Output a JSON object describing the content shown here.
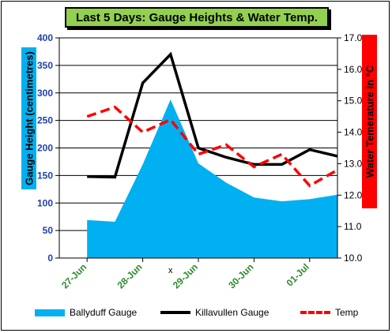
{
  "chart_data": {
    "type": "line",
    "title": "Last 5 Days: Gauge Heights & Water Temp.",
    "ylabel": "Gauge Height (centimetres)",
    "y2label": "Water Temerature in °C",
    "ylim": [
      0,
      400
    ],
    "y2lim": [
      10.0,
      17.0
    ],
    "yticks": [
      "0",
      "50",
      "100",
      "150",
      "200",
      "250",
      "300",
      "350",
      "400"
    ],
    "y2ticks": [
      "10.0",
      "11.0",
      "12.0",
      "13.0",
      "14.0",
      "15.0",
      "16.0",
      "17.0"
    ],
    "xticks": [
      "27-Jun",
      "28-Jun",
      "29-Jun",
      "30-Jun",
      "01-Jul"
    ],
    "x_marker_label": "x",
    "grid": true,
    "legend_position": "bottom",
    "series": [
      {
        "name": "Ballyduff Gauge",
        "type": "area",
        "color": "#00b0f0",
        "x": [
          0.0,
          0.5,
          1.0,
          1.5,
          2.0,
          2.5,
          3.0,
          3.5,
          4.0,
          4.5
        ],
        "values": [
          69,
          66,
          170,
          288,
          172,
          137,
          110,
          103,
          107,
          115
        ]
      },
      {
        "name": "Killavullen Gauge",
        "type": "line",
        "color": "#000000",
        "x": [
          0.0,
          0.5,
          1.0,
          1.5,
          2.0,
          2.5,
          3.0,
          3.5,
          4.0,
          4.5
        ],
        "values": [
          148,
          147,
          318,
          370,
          200,
          183,
          170,
          170,
          197,
          185
        ]
      },
      {
        "name": "Temp",
        "type": "line",
        "axis": "right",
        "color": "#ff0000",
        "x": [
          0.0,
          0.5,
          1.0,
          1.5,
          2.0,
          2.5,
          3.0,
          3.5,
          4.0,
          4.5
        ],
        "values": [
          14.5,
          14.8,
          14.0,
          14.4,
          13.3,
          13.6,
          12.9,
          13.3,
          12.3,
          12.8
        ]
      }
    ]
  }
}
